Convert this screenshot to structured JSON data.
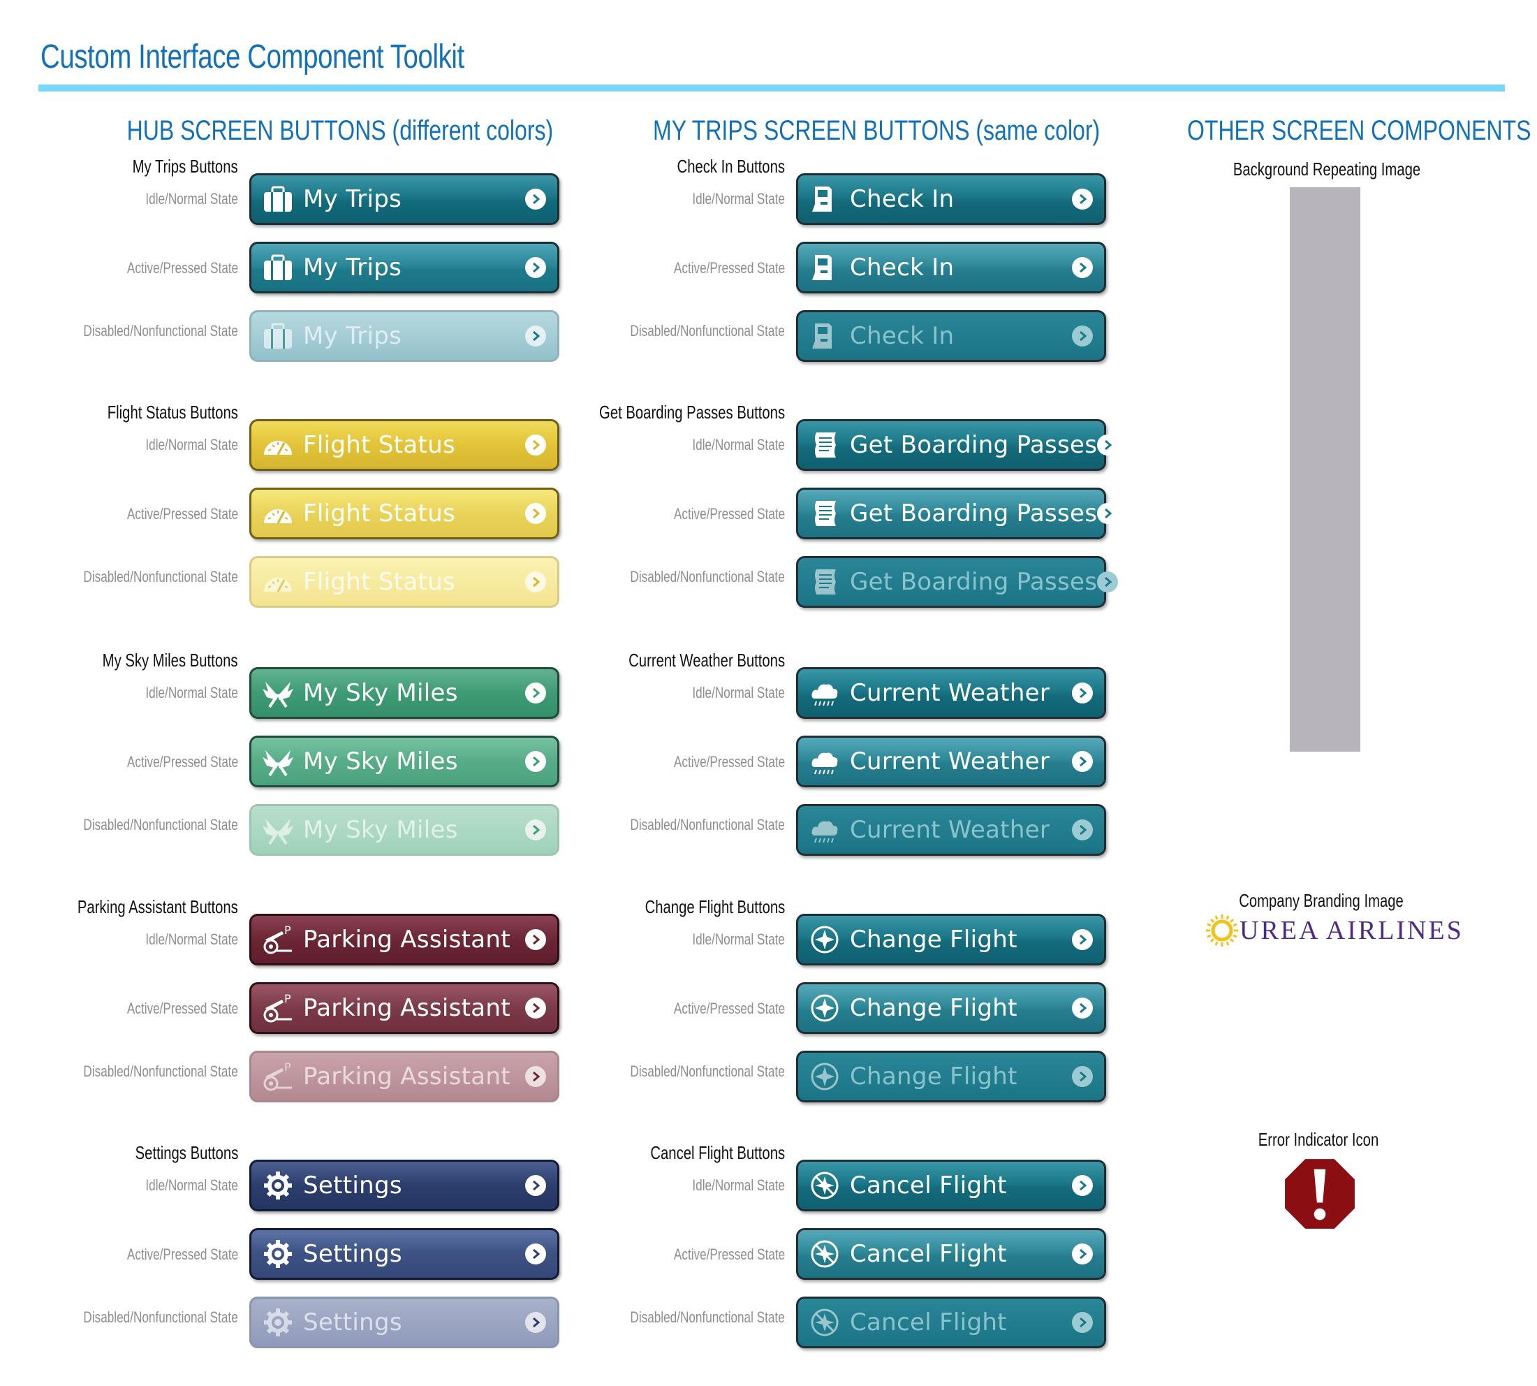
{
  "title": "Custom Interface Component Toolkit",
  "states": {
    "idle": "Idle/Normal State",
    "active": "Active/Pressed State",
    "disabled": "Disabled/Nonfunctional State"
  },
  "hub": {
    "heading": "HUB SCREEN BUTTONS (different colors)",
    "groups": [
      {
        "title": "My Trips Buttons",
        "button": "My Trips",
        "icon": "briefcase-icon",
        "color": "#1a7788"
      },
      {
        "title": "Flight Status Buttons",
        "button": "Flight Status",
        "icon": "gauge-icon",
        "color": "#e3c338"
      },
      {
        "title": "My Sky Miles Buttons",
        "button": "My Sky Miles",
        "icon": "wings-icon",
        "color": "#3f9b74"
      },
      {
        "title": "Parking Assistant Buttons",
        "button": "Parking Assistant",
        "icon": "parking-cart-icon",
        "color": "#6c2634"
      },
      {
        "title": "Settings Buttons",
        "button": "Settings",
        "icon": "gear-icon",
        "color": "#2c3e6d"
      }
    ]
  },
  "trips": {
    "heading": "MY TRIPS SCREEN BUTTONS (same color)",
    "color": "#1b7888",
    "groups": [
      {
        "title": "Check In Buttons",
        "button": "Check In",
        "icon": "kiosk-icon"
      },
      {
        "title": "Get Boarding Passes Buttons",
        "button": "Get Boarding Passes",
        "icon": "scroll-icon"
      },
      {
        "title": "Current Weather Buttons",
        "button": "Current Weather",
        "icon": "cloud-rain-icon"
      },
      {
        "title": "Change Flight Buttons",
        "button": "Change Flight",
        "icon": "plane-circle-icon"
      },
      {
        "title": "Cancel Flight Buttons",
        "button": "Cancel Flight",
        "icon": "plane-cancel-icon"
      }
    ]
  },
  "other": {
    "heading": "OTHER SCREEN COMPONENTS",
    "background_label": "Background Repeating Image",
    "background_color": "#b7b4bc",
    "branding_label": "Company Branding Image",
    "brand_first_letter": "O",
    "brand_rest": "UREA AIRLINES",
    "brand_color": "#4c2a86",
    "brand_sun_color": "#f2c21b",
    "error_label": "Error Indicator Icon",
    "error_color": "#8b0e12"
  }
}
